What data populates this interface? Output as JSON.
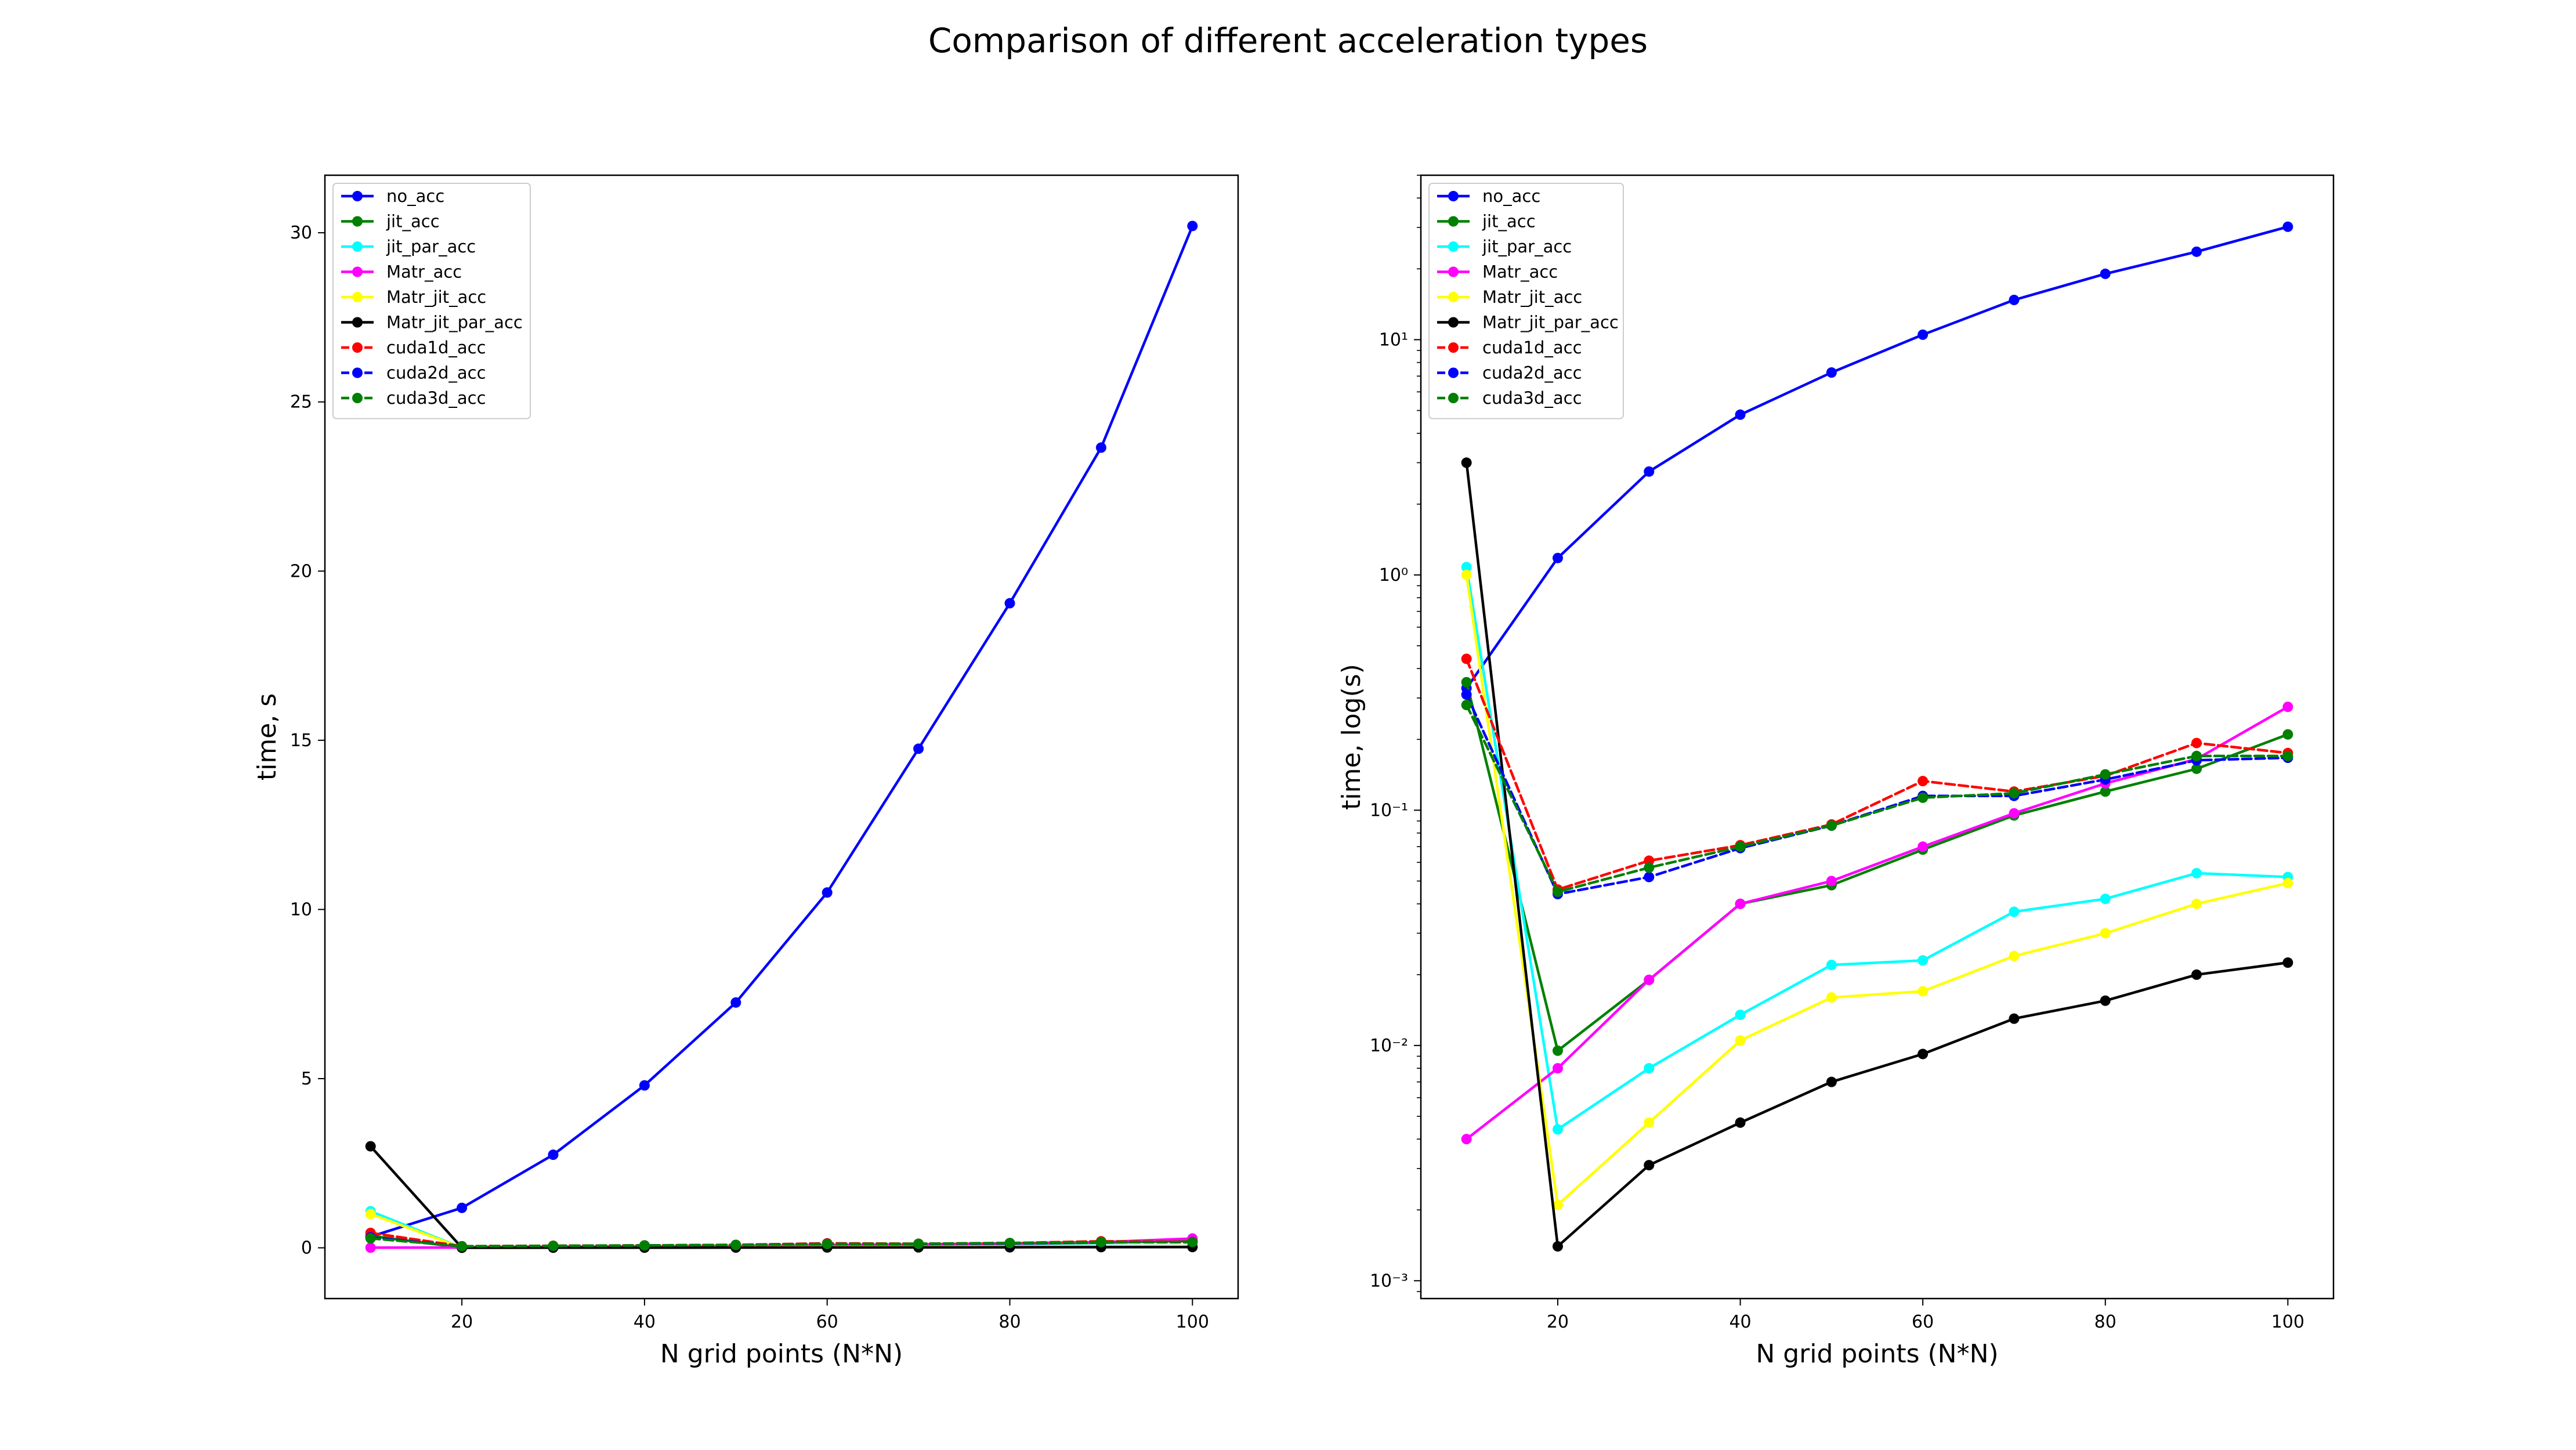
{
  "figure_title": "Comparison of different acceleration types",
  "chart_data": [
    {
      "type": "line",
      "title": "",
      "xlabel": "N grid points (N*N)",
      "ylabel": "time, s",
      "yscale": "linear",
      "xlim": [
        5,
        105
      ],
      "ylim": [
        -1.5,
        31.7
      ],
      "xticks": [
        20,
        40,
        60,
        80,
        100
      ],
      "xtick_labels": [
        "20",
        "40",
        "60",
        "80",
        "100"
      ],
      "yticks": [
        0,
        5,
        10,
        15,
        20,
        25,
        30
      ],
      "ytick_labels": [
        "0",
        "5",
        "10",
        "15",
        "20",
        "25",
        "30"
      ],
      "grid": false,
      "legend_position": "upper-left",
      "x": [
        10,
        20,
        30,
        40,
        50,
        60,
        70,
        80,
        90,
        100
      ],
      "series": [
        {
          "name": "no_acc",
          "color": "#0000ff",
          "dash": "solid",
          "values": [
            0.33,
            1.18,
            2.75,
            4.8,
            7.25,
            10.5,
            14.75,
            19.05,
            23.65,
            30.2
          ]
        },
        {
          "name": "jit_acc",
          "color": "#008000",
          "dash": "solid",
          "values": [
            0.35,
            0.0095,
            0.019,
            0.04,
            0.048,
            0.068,
            0.095,
            0.12,
            0.15,
            0.21
          ]
        },
        {
          "name": "jit_par_acc",
          "color": "#00ffff",
          "dash": "solid",
          "values": [
            1.08,
            0.0044,
            0.008,
            0.0135,
            0.022,
            0.023,
            0.037,
            0.042,
            0.054,
            0.052
          ]
        },
        {
          "name": "Matr_acc",
          "color": "#ff00ff",
          "dash": "solid",
          "values": [
            0.004,
            0.008,
            0.019,
            0.04,
            0.05,
            0.07,
            0.097,
            0.13,
            0.165,
            0.275
          ]
        },
        {
          "name": "Matr_jit_acc",
          "color": "#ffff00",
          "dash": "solid",
          "values": [
            1.0,
            0.0021,
            0.0047,
            0.0105,
            0.016,
            0.017,
            0.024,
            0.03,
            0.04,
            0.049
          ]
        },
        {
          "name": "Matr_jit_par_acc",
          "color": "#000000",
          "dash": "solid",
          "values": [
            3.0,
            0.0014,
            0.0031,
            0.0047,
            0.007,
            0.0092,
            0.013,
            0.0155,
            0.02,
            0.0225
          ]
        },
        {
          "name": "cuda1d_acc",
          "color": "#ff0000",
          "dash": "dashed",
          "values": [
            0.44,
            0.046,
            0.061,
            0.071,
            0.087,
            0.133,
            0.12,
            0.14,
            0.193,
            0.175
          ]
        },
        {
          "name": "cuda2d_acc",
          "color": "#0000ff",
          "dash": "dashed",
          "values": [
            0.31,
            0.044,
            0.052,
            0.069,
            0.086,
            0.115,
            0.115,
            0.135,
            0.163,
            0.167
          ]
        },
        {
          "name": "cuda3d_acc",
          "color": "#008000",
          "dash": "dashed",
          "values": [
            0.28,
            0.045,
            0.057,
            0.07,
            0.086,
            0.113,
            0.118,
            0.142,
            0.17,
            0.17
          ]
        }
      ]
    },
    {
      "type": "line",
      "title": "",
      "xlabel": "N grid points (N*N)",
      "ylabel": "time, log(s)",
      "yscale": "log",
      "xlim": [
        5,
        105
      ],
      "ylim": [
        0.00084,
        50
      ],
      "xticks": [
        20,
        40,
        60,
        80,
        100
      ],
      "xtick_labels": [
        "20",
        "40",
        "60",
        "80",
        "100"
      ],
      "yticks": [
        0.001,
        0.01,
        0.1,
        1,
        10
      ],
      "ytick_labels": [
        "10⁻³",
        "10⁻²",
        "10⁻¹",
        "10⁰",
        "10¹"
      ],
      "grid": false,
      "legend_position": "upper-left",
      "x": [
        10,
        20,
        30,
        40,
        50,
        60,
        70,
        80,
        90,
        100
      ],
      "series": [
        {
          "name": "no_acc",
          "color": "#0000ff",
          "dash": "solid",
          "values": [
            0.33,
            1.18,
            2.75,
            4.8,
            7.25,
            10.5,
            14.75,
            19.05,
            23.65,
            30.2
          ]
        },
        {
          "name": "jit_acc",
          "color": "#008000",
          "dash": "solid",
          "values": [
            0.35,
            0.0095,
            0.019,
            0.04,
            0.048,
            0.068,
            0.095,
            0.12,
            0.15,
            0.21
          ]
        },
        {
          "name": "jit_par_acc",
          "color": "#00ffff",
          "dash": "solid",
          "values": [
            1.08,
            0.0044,
            0.008,
            0.0135,
            0.022,
            0.023,
            0.037,
            0.042,
            0.054,
            0.052
          ]
        },
        {
          "name": "Matr_acc",
          "color": "#ff00ff",
          "dash": "solid",
          "values": [
            0.004,
            0.008,
            0.019,
            0.04,
            0.05,
            0.07,
            0.097,
            0.13,
            0.165,
            0.275
          ]
        },
        {
          "name": "Matr_jit_acc",
          "color": "#ffff00",
          "dash": "solid",
          "values": [
            1.0,
            0.0021,
            0.0047,
            0.0105,
            0.016,
            0.017,
            0.024,
            0.03,
            0.04,
            0.049
          ]
        },
        {
          "name": "Matr_jit_par_acc",
          "color": "#000000",
          "dash": "solid",
          "values": [
            3.0,
            0.0014,
            0.0031,
            0.0047,
            0.007,
            0.0092,
            0.013,
            0.0155,
            0.02,
            0.0225
          ]
        },
        {
          "name": "cuda1d_acc",
          "color": "#ff0000",
          "dash": "dashed",
          "values": [
            0.44,
            0.046,
            0.061,
            0.071,
            0.087,
            0.133,
            0.12,
            0.14,
            0.193,
            0.175
          ]
        },
        {
          "name": "cuda2d_acc",
          "color": "#0000ff",
          "dash": "dashed",
          "values": [
            0.31,
            0.044,
            0.052,
            0.069,
            0.086,
            0.115,
            0.115,
            0.135,
            0.163,
            0.167
          ]
        },
        {
          "name": "cuda3d_acc",
          "color": "#008000",
          "dash": "dashed",
          "values": [
            0.28,
            0.045,
            0.057,
            0.07,
            0.086,
            0.113,
            0.118,
            0.142,
            0.17,
            0.17
          ]
        }
      ]
    }
  ]
}
